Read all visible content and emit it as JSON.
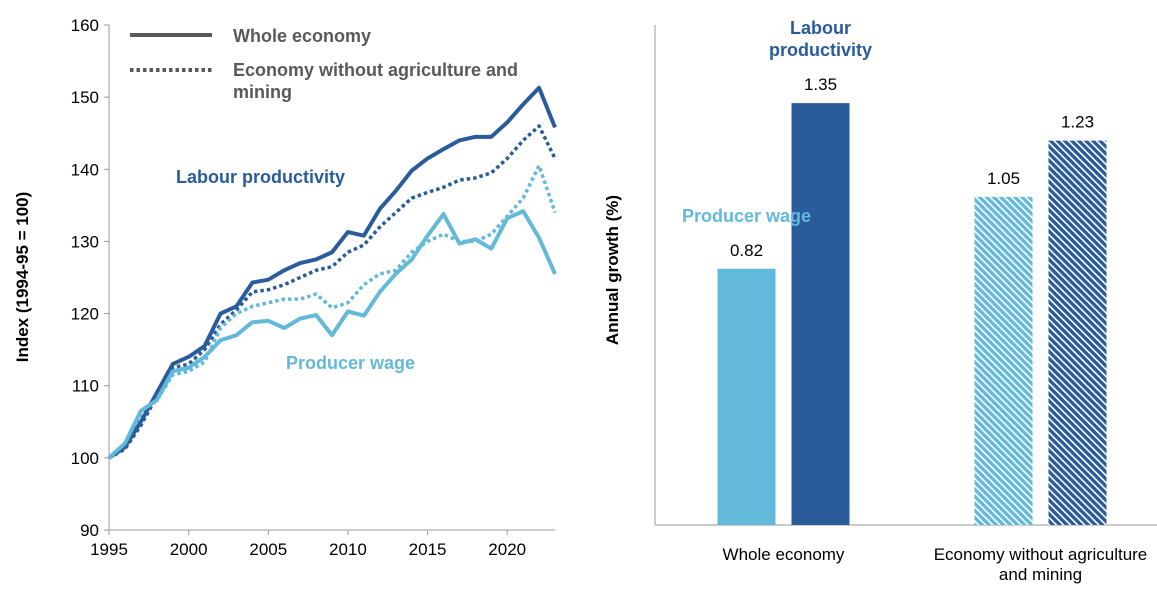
{
  "chart_data": [
    {
      "type": "line",
      "y_label": "Index (1994-95 = 100)",
      "x": [
        1995,
        1996,
        1997,
        1998,
        1999,
        2000,
        2001,
        2002,
        2003,
        2004,
        2005,
        2006,
        2007,
        2008,
        2009,
        2010,
        2011,
        2012,
        2013,
        2014,
        2015,
        2016,
        2017,
        2018,
        2019,
        2020,
        2021,
        2022,
        2023
      ],
      "xlim": [
        1995,
        2023
      ],
      "xticks": [
        1995,
        2000,
        2005,
        2010,
        2015,
        2020
      ],
      "ylim": [
        90,
        160
      ],
      "yticks": [
        90,
        100,
        110,
        120,
        130,
        140,
        150,
        160
      ],
      "legend": [
        {
          "label": "Whole economy",
          "dash": "solid"
        },
        {
          "label": "Economy without agriculture and mining",
          "dash": "dotted"
        }
      ],
      "legend_color": "#595959",
      "annotations": [
        {
          "text": "Labour productivity",
          "color": "#2a5b9b"
        },
        {
          "text": "Producer wage",
          "color": "#63b9d9"
        }
      ],
      "series": [
        {
          "color": "#2a5b9b",
          "dash": "dotted",
          "values": [
            100,
            101.2,
            104.5,
            108.5,
            112.5,
            113,
            115,
            118.5,
            120.5,
            123,
            123.3,
            124,
            125,
            126,
            126.5,
            128.5,
            129.5,
            132,
            134,
            136,
            136.8,
            137.5,
            138.5,
            138.8,
            139.5,
            141.5,
            144,
            146,
            141.5
          ]
        },
        {
          "color": "#63b9d9",
          "dash": "dotted",
          "values": [
            100,
            102,
            106,
            108,
            111.5,
            112,
            113.3,
            118,
            120,
            121,
            121.5,
            122,
            122,
            122.7,
            120.8,
            121.5,
            124,
            125.5,
            126,
            128.5,
            130,
            131,
            130,
            130,
            131,
            133.5,
            136,
            140.5,
            134
          ]
        },
        {
          "color": "#2a5b9b",
          "dash": "solid",
          "values": [
            100,
            101.5,
            105,
            109,
            113,
            114,
            115.5,
            120,
            121,
            124.3,
            124.7,
            126,
            127,
            127.5,
            128.5,
            131.3,
            130.8,
            134.5,
            137,
            139.8,
            141.5,
            142.8,
            144,
            144.5,
            144.5,
            146.5,
            149,
            151.3,
            145.8
          ]
        },
        {
          "color": "#63b9d9",
          "dash": "solid",
          "values": [
            100,
            102,
            106.5,
            108,
            112,
            112.5,
            114,
            116.3,
            117,
            118.8,
            119,
            118,
            119.3,
            119.8,
            117,
            120.3,
            119.7,
            123,
            125.5,
            127.5,
            130.8,
            133.8,
            129.7,
            130.3,
            129,
            133.2,
            134.2,
            130.5,
            125.5
          ]
        }
      ]
    },
    {
      "type": "bar",
      "y_label": "Annual growth (%)",
      "categories": [
        "Whole economy",
        "Economy without agriculture and mining"
      ],
      "ylim": [
        0,
        1.6
      ],
      "series": [
        {
          "name": "Producer wage",
          "color": "#63b9d9",
          "values": [
            0.82,
            1.05
          ],
          "hatched": [
            false,
            true
          ]
        },
        {
          "name": "Labour productivity",
          "color": "#2a5b9b",
          "values": [
            1.35,
            1.23
          ],
          "hatched": [
            false,
            true
          ]
        }
      ]
    }
  ]
}
